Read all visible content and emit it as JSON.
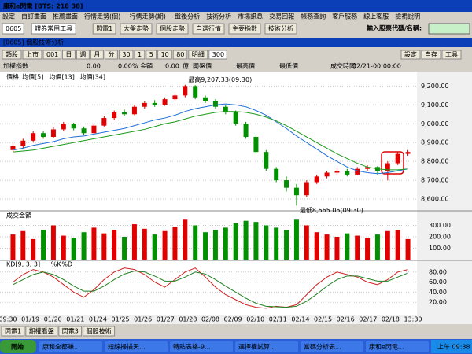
{
  "window": {
    "title": "康和e閃電 [BTS: 218 38]"
  },
  "menu": [
    "設定",
    "自訂畫面",
    "推薦畫面",
    "行情走勢(個)",
    "行情走勢(期)",
    "盤後分析",
    "技術分析",
    "市場訊息",
    "交易回報",
    "帳務查詢",
    "客戶服務",
    "線上客服",
    "檢視說明"
  ],
  "toolbar": {
    "code": "0605",
    "tools": "證券常用工具",
    "buttons": [
      "閃電1",
      "大盤走勢",
      "個股走勢",
      "自選行情",
      "主要指數",
      "技術分析"
    ],
    "search_label": "輸入股票代碼/名稱:"
  },
  "panel": {
    "title": "[0605] 個股技術分析",
    "buttons": [
      "設定",
      "自存",
      "工具"
    ],
    "controls": [
      "類股",
      "上市",
      "001",
      "日",
      "週",
      "月",
      "分",
      "30",
      "1",
      "5",
      "10",
      "80",
      "明細",
      "300"
    ]
  },
  "info": [
    "加權指數",
    "0.00",
    "0.00%",
    "金額",
    "0.00",
    "億",
    "開盤價",
    "最高價",
    "最低價",
    "成交時間",
    "02/21-00:00:00"
  ],
  "chart": {
    "type": "candlestick",
    "legend": [
      "價格",
      "均價[5]",
      "均價[13]",
      "均價[34]"
    ],
    "candles": [
      [
        8860,
        8895,
        8850,
        8880
      ],
      [
        8880,
        8920,
        8870,
        8910
      ],
      [
        8910,
        8960,
        8900,
        8950
      ],
      [
        8950,
        8960,
        8920,
        8930
      ],
      [
        8930,
        8980,
        8925,
        8970
      ],
      [
        8970,
        9010,
        8960,
        9000
      ],
      [
        9000,
        9005,
        8965,
        8975
      ],
      [
        8975,
        8985,
        8940,
        8950
      ],
      [
        8950,
        9000,
        8945,
        8990
      ],
      [
        8990,
        9040,
        8985,
        9030
      ],
      [
        9030,
        9070,
        9020,
        9060
      ],
      [
        9060,
        9075,
        9040,
        9050
      ],
      [
        9050,
        9100,
        9045,
        9090
      ],
      [
        9090,
        9120,
        9080,
        9110
      ],
      [
        9110,
        9125,
        9090,
        9100
      ],
      [
        9100,
        9140,
        9095,
        9130
      ],
      [
        9130,
        9160,
        9120,
        9150
      ],
      [
        9150,
        9207,
        9140,
        9200
      ],
      [
        9200,
        9205,
        9130,
        9140
      ],
      [
        9140,
        9150,
        9110,
        9120
      ],
      [
        9120,
        9130,
        9080,
        9090
      ],
      [
        9090,
        9100,
        9050,
        9060
      ],
      [
        9060,
        9070,
        8990,
        9000
      ],
      [
        9000,
        9010,
        8920,
        8930
      ],
      [
        8930,
        8940,
        8840,
        8850
      ],
      [
        8850,
        8860,
        8750,
        8760
      ],
      [
        8760,
        8770,
        8690,
        8700
      ],
      [
        8700,
        8720,
        8640,
        8660
      ],
      [
        8660,
        8680,
        8565,
        8620
      ],
      [
        8620,
        8700,
        8610,
        8690
      ],
      [
        8690,
        8730,
        8680,
        8720
      ],
      [
        8720,
        8750,
        8710,
        8740
      ],
      [
        8740,
        8765,
        8730,
        8750
      ],
      [
        8750,
        8760,
        8720,
        8730
      ],
      [
        8730,
        8770,
        8725,
        8760
      ],
      [
        8760,
        8780,
        8750,
        8770
      ],
      [
        8770,
        8775,
        8730,
        8750
      ],
      [
        8750,
        8800,
        8700,
        8790
      ],
      [
        8790,
        8850,
        8780,
        8840
      ],
      [
        8840,
        8860,
        8830,
        8850
      ]
    ],
    "up_color": "#e00000",
    "down_color": "#009000",
    "ma_series": [
      {
        "color": "#1e6fd8",
        "values": [
          8860,
          8870,
          8885,
          8895,
          8905,
          8920,
          8930,
          8935,
          8945,
          8955,
          8965,
          8975,
          8990,
          9005,
          9020,
          9030,
          9045,
          9065,
          9080,
          9090,
          9100,
          9105,
          9100,
          9090,
          9070,
          9045,
          9010,
          8975,
          8935,
          8900,
          8865,
          8830,
          8800,
          8770,
          8750,
          8740,
          8735,
          8740,
          8750,
          8760
        ]
      },
      {
        "color": "#1a9a1a",
        "values": [
          8850,
          8855,
          8860,
          8870,
          8880,
          8890,
          8900,
          8910,
          8920,
          8930,
          8940,
          8950,
          8960,
          8970,
          8985,
          9000,
          9010,
          9025,
          9040,
          9050,
          9060,
          9065,
          9065,
          9060,
          9050,
          9035,
          9015,
          8990,
          8960,
          8930,
          8900,
          8870,
          8840,
          8815,
          8790,
          8770,
          8760,
          8755,
          8755,
          8760
        ]
      }
    ],
    "ylim": [
      8550,
      9260
    ],
    "yticks": [
      {
        "value": 8600,
        "label": "8,600.00"
      },
      {
        "value": 8700,
        "label": "8,700.00"
      },
      {
        "value": 8800,
        "label": "8,800.00"
      },
      {
        "value": 8900,
        "label": "8,900.00"
      },
      {
        "value": 9000,
        "label": "9,000.00"
      },
      {
        "value": 9100,
        "label": "9,100.00"
      },
      {
        "value": 9200,
        "label": "9,200.00"
      }
    ],
    "high_label": "最高9,207.33(09:30)",
    "low_label": "最低8,565.05(09:30)",
    "x_labels": [
      "09:30",
      "01/19",
      "01/20",
      "01/21",
      "01/24",
      "01/25",
      "01/26",
      "01/27",
      "01/28",
      "02/08",
      "02/09",
      "02/10",
      "02/11",
      "02/14",
      "02/15",
      "02/16",
      "02/17",
      "02/18",
      "13:30"
    ]
  },
  "volume": {
    "type": "bar",
    "title": "成交金額",
    "values": [
      220,
      250,
      180,
      260,
      300,
      210,
      190,
      240,
      280,
      230,
      260,
      200,
      310,
      270,
      220,
      250,
      290,
      350,
      300,
      240,
      260,
      280,
      320,
      340,
      330,
      300,
      280,
      260,
      350,
      300,
      240,
      220,
      200,
      230,
      210,
      190,
      220,
      250,
      260,
      180
    ],
    "ylim": [
      0,
      400
    ],
    "yticks": [
      {
        "value": 100,
        "label": "100.00"
      },
      {
        "value": 200,
        "label": "200.00"
      },
      {
        "value": 300,
        "label": "300.00"
      }
    ]
  },
  "kd": {
    "type": "line",
    "title": "KD[9, 3, 3]",
    "ylim": [
      0,
      100
    ],
    "yticks": [
      {
        "value": 20,
        "label": "20.00"
      },
      {
        "value": 40,
        "label": "40.00"
      },
      {
        "value": 60,
        "label": "60.00"
      },
      {
        "value": 80,
        "label": "80.00"
      }
    ],
    "series": [
      {
        "name": "%K",
        "color": "#d02020",
        "values": [
          60,
          75,
          85,
          80,
          70,
          55,
          40,
          30,
          45,
          65,
          80,
          88,
          85,
          75,
          60,
          50,
          65,
          80,
          88,
          70,
          50,
          35,
          25,
          15,
          10,
          8,
          12,
          10,
          15,
          35,
          55,
          70,
          80,
          75,
          70,
          60,
          55,
          65,
          80,
          85
        ]
      },
      {
        "name": "%D",
        "color": "#208020",
        "values": [
          55,
          65,
          75,
          80,
          75,
          65,
          52,
          42,
          42,
          52,
          65,
          76,
          82,
          80,
          72,
          62,
          62,
          70,
          80,
          76,
          65,
          52,
          40,
          28,
          18,
          12,
          11,
          10,
          12,
          22,
          36,
          52,
          65,
          72,
          72,
          67,
          62,
          62,
          70,
          78
        ]
      }
    ]
  },
  "tabs": [
    "閃電1",
    "期權看盤",
    "閃電3",
    "個股技術"
  ],
  "taskbar": {
    "start": "開始",
    "tasks": [
      "康和全都賺...",
      "短線掃描天...",
      "轉貼表格-9...",
      "選擇權試算...",
      "當碼分析表...",
      "康和e閃電..."
    ],
    "clock": "上午 09:38"
  }
}
